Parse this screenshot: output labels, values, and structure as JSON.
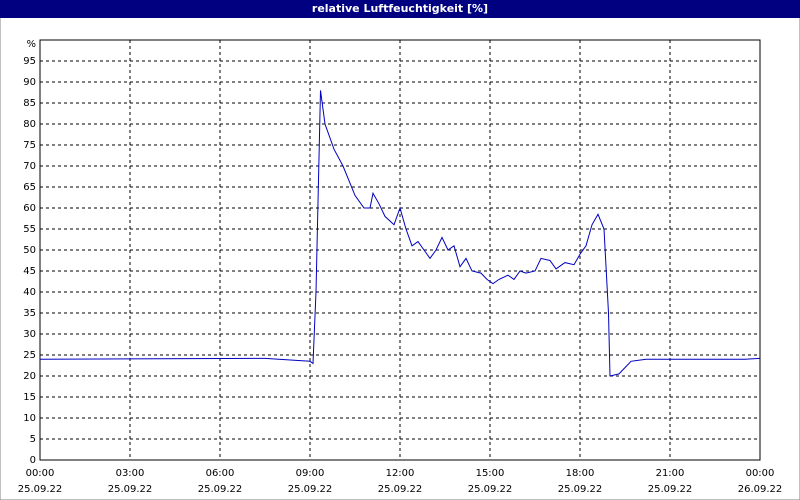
{
  "chart_data": {
    "type": "line",
    "title": "relative Luftfeuchtigkeit [%]",
    "y_unit": "%",
    "x": [
      0,
      7.5,
      9.0,
      9.1,
      9.2,
      9.35,
      9.5,
      9.8,
      10.1,
      10.5,
      10.8,
      11.0,
      11.1,
      11.3,
      11.5,
      11.8,
      12.0,
      12.2,
      12.4,
      12.6,
      12.8,
      13.0,
      13.2,
      13.4,
      13.6,
      13.8,
      14.0,
      14.2,
      14.4,
      14.7,
      14.9,
      15.1,
      15.3,
      15.6,
      15.8,
      16.0,
      16.2,
      16.5,
      16.7,
      17.0,
      17.2,
      17.5,
      17.8,
      18.0,
      18.2,
      18.4,
      18.6,
      18.8,
      18.95,
      19.0,
      19.3,
      19.5,
      19.7,
      20.2,
      21,
      22,
      23.5,
      24
    ],
    "series": [
      {
        "name": "relative Luftfeuchtigkeit",
        "color": "#0000c0",
        "values": [
          24,
          24.2,
          23.5,
          23,
          40,
          88,
          80,
          74,
          70,
          63,
          60,
          60,
          63.5,
          61,
          58,
          56,
          60,
          55,
          51,
          52,
          50,
          48,
          50,
          53,
          50,
          51,
          46,
          48,
          45,
          44.5,
          43,
          42,
          43,
          44,
          43,
          45,
          44.5,
          45,
          48,
          47.5,
          45.5,
          47,
          46.5,
          49,
          51,
          56,
          58.5,
          55,
          35,
          20,
          20.5,
          22,
          23.5,
          24,
          24,
          24,
          24,
          24.2
        ]
      }
    ],
    "xlim": [
      0,
      24
    ],
    "ylim": [
      0,
      100
    ],
    "xticks": [
      {
        "value": 0,
        "label": "00:00"
      },
      {
        "value": 3,
        "label": "03:00"
      },
      {
        "value": 6,
        "label": "06:00"
      },
      {
        "value": 9,
        "label": "09:00"
      },
      {
        "value": 12,
        "label": "12:00"
      },
      {
        "value": 15,
        "label": "15:00"
      },
      {
        "value": 18,
        "label": "18:00"
      },
      {
        "value": 21,
        "label": "21:00"
      },
      {
        "value": 24,
        "label": "00:00"
      }
    ],
    "xtick_dates": [
      "25.09.22",
      "25.09.22",
      "25.09.22",
      "25.09.22",
      "25.09.22",
      "25.09.22",
      "25.09.22",
      "25.09.22",
      "26.09.22"
    ],
    "yticks": [
      0,
      5,
      10,
      15,
      20,
      25,
      30,
      35,
      40,
      45,
      50,
      55,
      60,
      65,
      70,
      75,
      80,
      85,
      90,
      95
    ],
    "grid": true
  }
}
